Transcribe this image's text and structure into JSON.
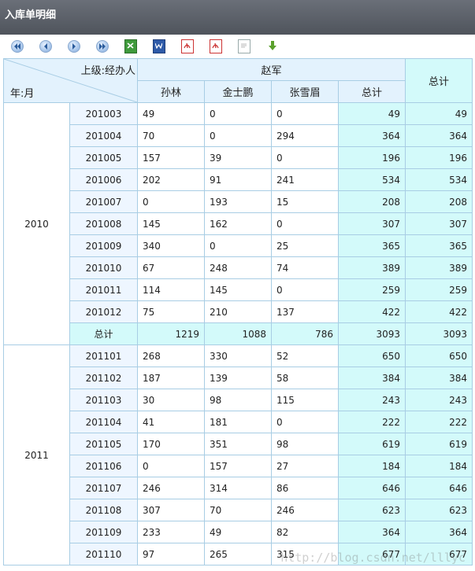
{
  "title": "入库单明细",
  "toolbar": {
    "icons": [
      "first-page-icon",
      "prev-page-icon",
      "next-page-icon",
      "last-page-icon",
      "excel-export-icon",
      "word-export-icon",
      "pdf-export-icon",
      "pdf-export-alt-icon",
      "text-export-icon",
      "download-icon"
    ]
  },
  "header": {
    "corner_top": "上级:经办人",
    "corner_bottom": "年:月",
    "group": "赵军",
    "agents": [
      "孙林",
      "金士鹏",
      "张雪眉"
    ],
    "subtotal": "总计",
    "grand_total": "总计"
  },
  "years": [
    {
      "year": "2010",
      "rows": [
        {
          "month": "201003",
          "a": "49",
          "b": "0",
          "c": "0",
          "t": "49",
          "g": "49"
        },
        {
          "month": "201004",
          "a": "70",
          "b": "0",
          "c": "294",
          "t": "364",
          "g": "364"
        },
        {
          "month": "201005",
          "a": "157",
          "b": "39",
          "c": "0",
          "t": "196",
          "g": "196"
        },
        {
          "month": "201006",
          "a": "202",
          "b": "91",
          "c": "241",
          "t": "534",
          "g": "534"
        },
        {
          "month": "201007",
          "a": "0",
          "b": "193",
          "c": "15",
          "t": "208",
          "g": "208"
        },
        {
          "month": "201008",
          "a": "145",
          "b": "162",
          "c": "0",
          "t": "307",
          "g": "307"
        },
        {
          "month": "201009",
          "a": "340",
          "b": "0",
          "c": "25",
          "t": "365",
          "g": "365"
        },
        {
          "month": "201010",
          "a": "67",
          "b": "248",
          "c": "74",
          "t": "389",
          "g": "389"
        },
        {
          "month": "201011",
          "a": "114",
          "b": "145",
          "c": "0",
          "t": "259",
          "g": "259"
        },
        {
          "month": "201012",
          "a": "75",
          "b": "210",
          "c": "137",
          "t": "422",
          "g": "422"
        }
      ],
      "sum": {
        "label": "总计",
        "a": "1219",
        "b": "1088",
        "c": "786",
        "t": "3093",
        "g": "3093"
      }
    },
    {
      "year": "2011",
      "rows": [
        {
          "month": "201101",
          "a": "268",
          "b": "330",
          "c": "52",
          "t": "650",
          "g": "650"
        },
        {
          "month": "201102",
          "a": "187",
          "b": "139",
          "c": "58",
          "t": "384",
          "g": "384"
        },
        {
          "month": "201103",
          "a": "30",
          "b": "98",
          "c": "115",
          "t": "243",
          "g": "243"
        },
        {
          "month": "201104",
          "a": "41",
          "b": "181",
          "c": "0",
          "t": "222",
          "g": "222"
        },
        {
          "month": "201105",
          "a": "170",
          "b": "351",
          "c": "98",
          "t": "619",
          "g": "619"
        },
        {
          "month": "201106",
          "a": "0",
          "b": "157",
          "c": "27",
          "t": "184",
          "g": "184"
        },
        {
          "month": "201107",
          "a": "246",
          "b": "314",
          "c": "86",
          "t": "646",
          "g": "646"
        },
        {
          "month": "201108",
          "a": "307",
          "b": "70",
          "c": "246",
          "t": "623",
          "g": "623"
        },
        {
          "month": "201109",
          "a": "233",
          "b": "49",
          "c": "82",
          "t": "364",
          "g": "364"
        },
        {
          "month": "201110",
          "a": "97",
          "b": "265",
          "c": "315",
          "t": "677",
          "g": "677"
        }
      ]
    }
  ],
  "watermark": "http://blog.csdn.net/lllyc"
}
